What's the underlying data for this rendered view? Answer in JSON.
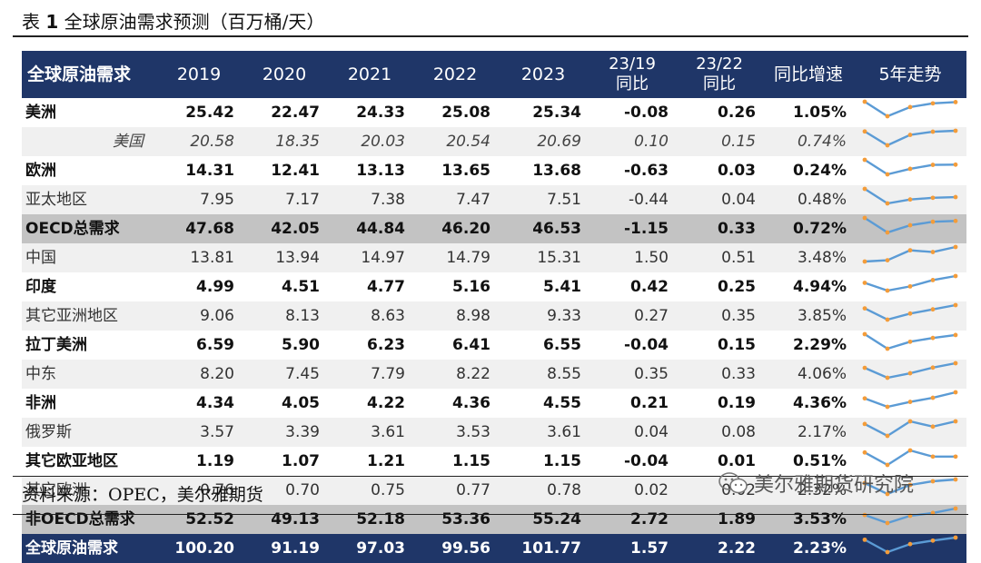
{
  "caption": {
    "prefix": "表",
    "num": "1",
    "title": "全球原油需求预测（百万桶/天）"
  },
  "header": [
    "全球原油需求",
    "2019",
    "2020",
    "2021",
    "2022",
    "2023",
    "23/19\n同比",
    "23/22\n同比",
    "同比增速",
    "5年走势"
  ],
  "rows": [
    {
      "name": "美洲",
      "style": "bold",
      "values": [
        "25.42",
        "22.47",
        "24.33",
        "25.08",
        "25.34",
        "-0.08",
        "0.26",
        "1.05%"
      ]
    },
    {
      "name": "美国",
      "style": "italic",
      "values": [
        "20.58",
        "18.35",
        "20.03",
        "20.54",
        "20.69",
        "0.10",
        "0.15",
        "0.74%"
      ]
    },
    {
      "name": "欧洲",
      "style": "bold",
      "values": [
        "14.31",
        "12.41",
        "13.13",
        "13.65",
        "13.68",
        "-0.63",
        "0.03",
        "0.24%"
      ]
    },
    {
      "name": "亚太地区",
      "style": "norm",
      "values": [
        "7.95",
        "7.17",
        "7.38",
        "7.47",
        "7.51",
        "-0.44",
        "0.04",
        "0.48%"
      ]
    },
    {
      "name": "OECD总需求",
      "style": "gray",
      "values": [
        "47.68",
        "42.05",
        "44.84",
        "46.20",
        "46.53",
        "-1.15",
        "0.33",
        "0.72%"
      ]
    },
    {
      "name": "中国",
      "style": "norm",
      "values": [
        "13.81",
        "13.94",
        "14.97",
        "14.79",
        "15.31",
        "1.50",
        "0.51",
        "3.48%"
      ]
    },
    {
      "name": "印度",
      "style": "bold",
      "values": [
        "4.99",
        "4.51",
        "4.77",
        "5.16",
        "5.41",
        "0.42",
        "0.25",
        "4.94%"
      ]
    },
    {
      "name": "其它亚洲地区",
      "style": "norm",
      "values": [
        "9.06",
        "8.13",
        "8.63",
        "8.98",
        "9.33",
        "0.27",
        "0.35",
        "3.85%"
      ]
    },
    {
      "name": "拉丁美洲",
      "style": "bold",
      "values": [
        "6.59",
        "5.90",
        "6.23",
        "6.41",
        "6.55",
        "-0.04",
        "0.15",
        "2.29%"
      ]
    },
    {
      "name": "中东",
      "style": "norm",
      "values": [
        "8.20",
        "7.45",
        "7.79",
        "8.22",
        "8.55",
        "0.35",
        "0.33",
        "4.06%"
      ]
    },
    {
      "name": "非洲",
      "style": "bold",
      "values": [
        "4.34",
        "4.05",
        "4.22",
        "4.36",
        "4.55",
        "0.21",
        "0.19",
        "4.36%"
      ]
    },
    {
      "name": "俄罗斯",
      "style": "norm",
      "values": [
        "3.57",
        "3.39",
        "3.61",
        "3.53",
        "3.61",
        "0.04",
        "0.08",
        "2.17%"
      ]
    },
    {
      "name": "其它欧亚地区",
      "style": "bold",
      "values": [
        "1.19",
        "1.07",
        "1.21",
        "1.15",
        "1.15",
        "-0.04",
        "0.01",
        "0.51%"
      ]
    },
    {
      "name": "其它欧洲",
      "style": "norm",
      "values": [
        "0.76",
        "0.70",
        "0.75",
        "0.77",
        "0.78",
        "0.02",
        "0.02",
        "2.32%"
      ]
    },
    {
      "name": "非OECD总需求",
      "style": "gray",
      "values": [
        "52.52",
        "49.13",
        "52.18",
        "53.36",
        "55.24",
        "2.72",
        "1.89",
        "3.53%"
      ]
    },
    {
      "name": "全球原油需求",
      "style": "total",
      "values": [
        "100.20",
        "91.19",
        "97.03",
        "99.56",
        "101.77",
        "1.57",
        "2.22",
        "2.23%"
      ]
    }
  ],
  "source": "资料来源：OPEC，美尔雅期货",
  "watermark": "美尔雅期货研究院",
  "colors": {
    "header_bg": "#1f3668",
    "gray_row": "#c3c3c3",
    "shade_row": "#f0f0f0",
    "sparkline": "#5b9bd5",
    "marker": "#f39c3a"
  }
}
